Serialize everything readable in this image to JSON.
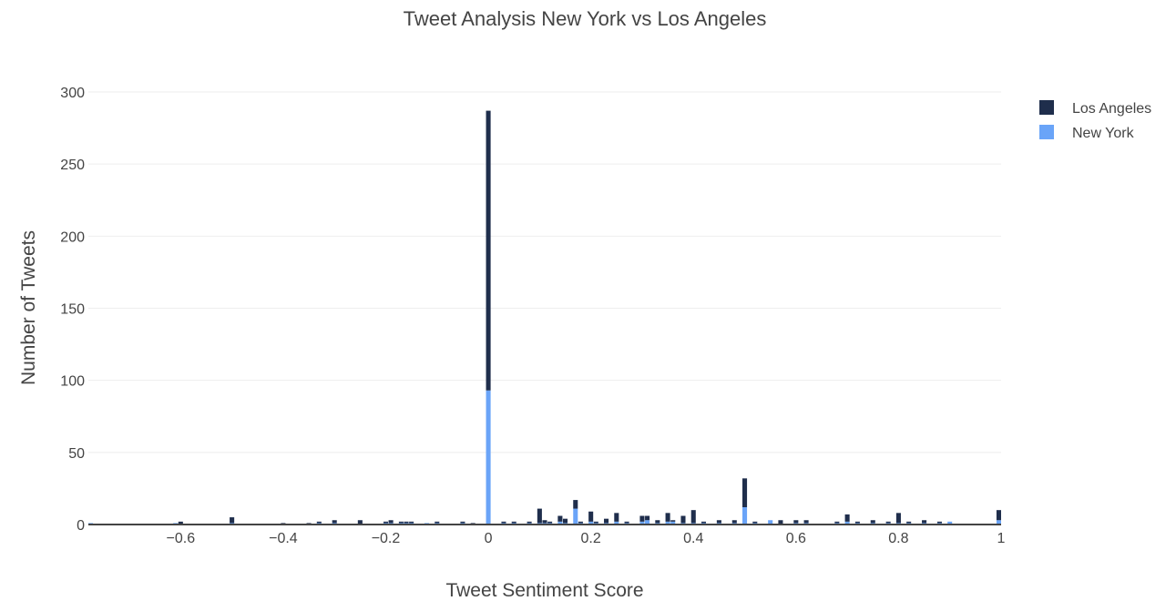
{
  "chart_data": {
    "type": "bar",
    "barmode": "stack",
    "title": "Tweet Analysis New York vs Los Angeles",
    "xlabel": "Tweet Sentiment Score",
    "ylabel": "Number of Tweets",
    "xlim": [
      -0.78,
      1.0
    ],
    "ylim": [
      0,
      300
    ],
    "x_ticks": [
      -0.6,
      -0.4,
      -0.2,
      0,
      0.2,
      0.4,
      0.6,
      0.8,
      1
    ],
    "x_tick_labels": [
      "−0.6",
      "−0.4",
      "−0.2",
      "0",
      "0.2",
      "0.4",
      "0.6",
      "0.8",
      "1"
    ],
    "y_ticks": [
      0,
      50,
      100,
      150,
      200,
      250,
      300
    ],
    "y_tick_labels": [
      "0",
      "50",
      "100",
      "150",
      "200",
      "250",
      "300"
    ],
    "grid": true,
    "legend_position": "top-right",
    "bin_width": 0.01,
    "x": [
      -0.78,
      -0.61,
      -0.6,
      -0.5,
      -0.4,
      -0.35,
      -0.33,
      -0.3,
      -0.25,
      -0.2,
      -0.19,
      -0.17,
      -0.16,
      -0.15,
      -0.12,
      -0.1,
      -0.05,
      -0.03,
      0,
      0.03,
      0.05,
      0.08,
      0.1,
      0.11,
      0.12,
      0.14,
      0.15,
      0.17,
      0.18,
      0.2,
      0.21,
      0.23,
      0.25,
      0.27,
      0.3,
      0.31,
      0.33,
      0.35,
      0.36,
      0.38,
      0.4,
      0.42,
      0.45,
      0.48,
      0.5,
      0.52,
      0.55,
      0.57,
      0.6,
      0.62,
      0.68,
      0.7,
      0.72,
      0.75,
      0.78,
      0.8,
      0.82,
      0.85,
      0.88,
      0.9,
      1
    ],
    "series": [
      {
        "name": "New York",
        "color": "#6aa4f8",
        "values": [
          1,
          1,
          0,
          1,
          0,
          0,
          1,
          1,
          0,
          1,
          1,
          1,
          1,
          1,
          1,
          1,
          1,
          0,
          93,
          1,
          1,
          1,
          1,
          1,
          1,
          2,
          1,
          11,
          1,
          2,
          1,
          1,
          2,
          1,
          2,
          3,
          1,
          2,
          2,
          1,
          1,
          1,
          1,
          1,
          12,
          1,
          3,
          0,
          1,
          1,
          1,
          2,
          1,
          1,
          1,
          1,
          1,
          1,
          1,
          2,
          3
        ]
      },
      {
        "name": "Los Angeles",
        "color": "#1f2e4c",
        "values": [
          0,
          0,
          2,
          4,
          1,
          1,
          1,
          2,
          3,
          1,
          2,
          1,
          1,
          1,
          0,
          1,
          1,
          1,
          194,
          1,
          1,
          1,
          10,
          2,
          1,
          4,
          3,
          6,
          1,
          7,
          1,
          3,
          6,
          1,
          4,
          3,
          2,
          6,
          1,
          5,
          9,
          1,
          2,
          2,
          20,
          1,
          0,
          3,
          2,
          2,
          1,
          5,
          1,
          2,
          1,
          7,
          1,
          2,
          1,
          0,
          7
        ]
      }
    ]
  }
}
